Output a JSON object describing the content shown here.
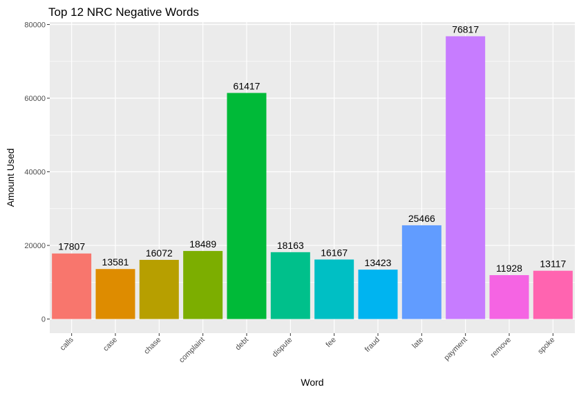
{
  "chart_data": {
    "type": "bar",
    "title": "Top 12 NRC Negative Words",
    "xlabel": "Word",
    "ylabel": "Amount Used",
    "categories": [
      "calls",
      "case",
      "chase",
      "complaint",
      "debt",
      "dispute",
      "fee",
      "fraud",
      "late",
      "payment",
      "remove",
      "spoke"
    ],
    "values": [
      17807,
      13581,
      16072,
      18489,
      61417,
      18163,
      16167,
      13423,
      25466,
      76817,
      11928,
      13117
    ],
    "colors": [
      "#F8766D",
      "#DE8C00",
      "#B79F00",
      "#7CAE00",
      "#00BA38",
      "#00C08B",
      "#00BFC4",
      "#00B4F0",
      "#619CFF",
      "#C77CFF",
      "#F564E3",
      "#FF64B0"
    ],
    "yticks": [
      0,
      20000,
      40000,
      60000,
      80000
    ],
    "ylim": [
      -3840,
      80660
    ],
    "grid": true,
    "legend": "none",
    "panel_background": "#EBEBEB"
  }
}
